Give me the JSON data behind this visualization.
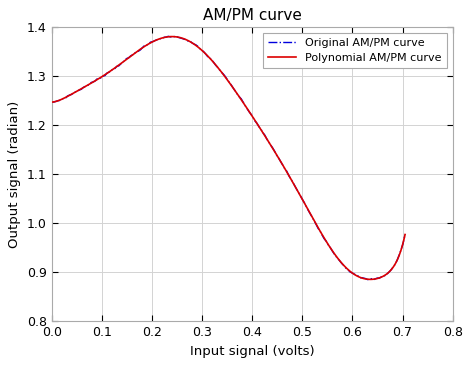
{
  "title": "AM/PM curve",
  "xlabel": "Input signal (volts)",
  "ylabel": "Output signal (radian)",
  "xlim": [
    0,
    0.8
  ],
  "ylim": [
    0.8,
    1.4
  ],
  "xticks": [
    0,
    0.1,
    0.2,
    0.3,
    0.4,
    0.5,
    0.6,
    0.7,
    0.8
  ],
  "yticks": [
    0.8,
    0.9,
    1.0,
    1.1,
    1.2,
    1.3,
    1.4
  ],
  "original_color": "#0000dd",
  "poly_color": "#dd0000",
  "legend": [
    "Original AM/PM curve",
    "Polynomial AM/PM curve"
  ],
  "background_color": "#ffffff",
  "grid_color": "#d3d3d3",
  "title_fontsize": 11,
  "label_fontsize": 9.5,
  "tick_fontsize": 9,
  "key_points_x": [
    0.0,
    0.02,
    0.05,
    0.08,
    0.1,
    0.13,
    0.15,
    0.17,
    0.2,
    0.22,
    0.23,
    0.25,
    0.27,
    0.3,
    0.33,
    0.35,
    0.38,
    0.4,
    0.43,
    0.45,
    0.48,
    0.5,
    0.52,
    0.54,
    0.56,
    0.58,
    0.6,
    0.62,
    0.63,
    0.64,
    0.65,
    0.66,
    0.68,
    0.7
  ],
  "key_points_y": [
    1.247,
    1.254,
    1.268,
    1.287,
    1.3,
    1.321,
    1.335,
    1.348,
    1.368,
    1.38,
    1.383,
    1.381,
    1.373,
    1.35,
    1.318,
    1.295,
    1.252,
    1.218,
    1.17,
    1.137,
    1.085,
    1.048,
    1.012,
    0.978,
    0.944,
    0.916,
    0.897,
    0.888,
    0.886,
    0.886,
    0.888,
    0.891,
    0.908,
    0.956
  ]
}
